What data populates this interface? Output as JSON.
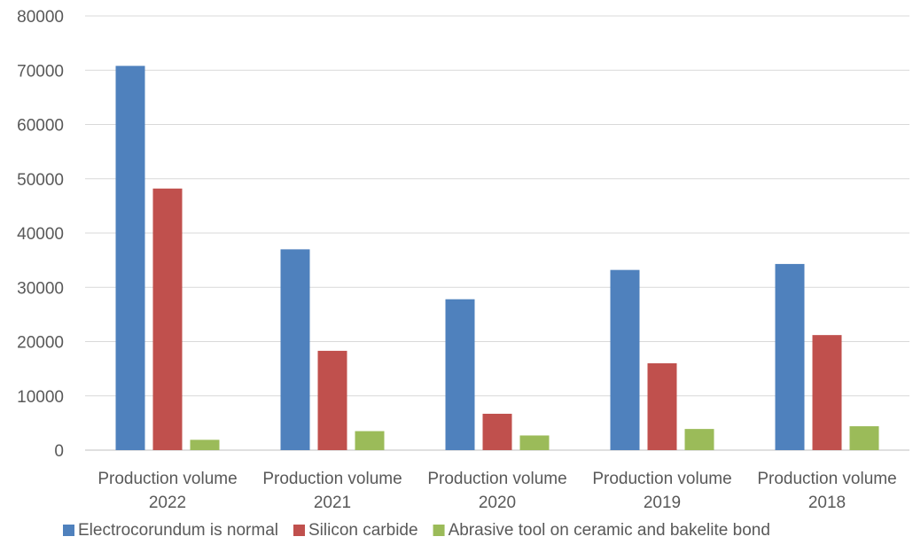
{
  "chart_data": {
    "type": "bar",
    "categories": [
      [
        "Production volume",
        "2022"
      ],
      [
        "Production volume",
        "2021"
      ],
      [
        "Production volume",
        "2020"
      ],
      [
        "Production volume",
        "2019"
      ],
      [
        "Production volume",
        "2018"
      ]
    ],
    "series": [
      {
        "name": "Electrocorundum is normal",
        "color": "#4F81BD",
        "values": [
          70800,
          37000,
          27800,
          33200,
          34300
        ]
      },
      {
        "name": "Silicon carbide",
        "color": "#C0504D",
        "values": [
          48200,
          18300,
          6700,
          16000,
          21200
        ]
      },
      {
        "name": "Abrasive tool on ceramic and bakelite bond",
        "color": "#9BBB59",
        "values": [
          1900,
          3500,
          2700,
          3900,
          4400
        ]
      }
    ],
    "ylim": [
      0,
      80000
    ],
    "yticks": [
      "0",
      "10000",
      "20000",
      "30000",
      "40000",
      "50000",
      "60000",
      "70000",
      "80000"
    ],
    "grid": true,
    "legend_position": "bottom"
  }
}
